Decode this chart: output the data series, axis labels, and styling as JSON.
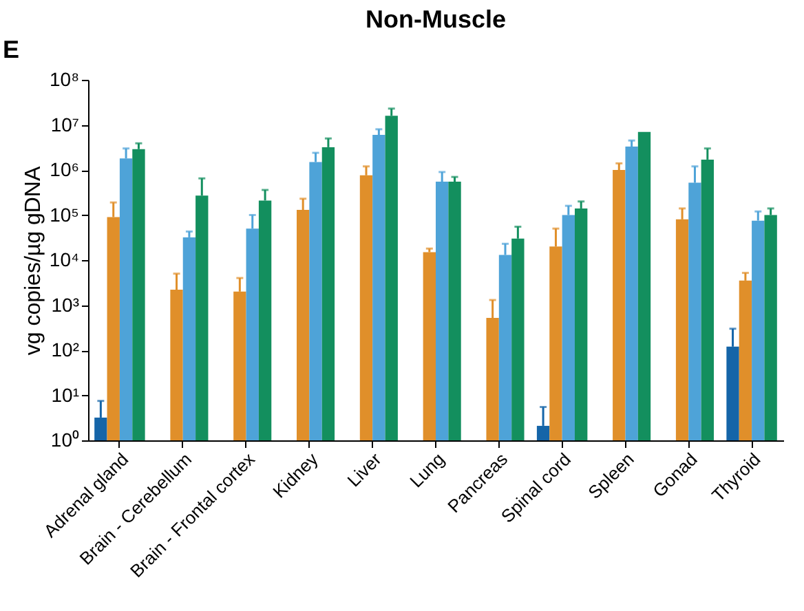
{
  "chart_data": {
    "type": "bar",
    "title": "Non-Muscle",
    "ylabel": "vg copies/µg gDNA",
    "annotations": [
      "E"
    ],
    "categories": [
      "Adrenal gland",
      "Brain - Cerebellum",
      "Brain - Frontal cortex",
      "Kidney",
      "Liver",
      "Lung",
      "Pancreas",
      "Spinal cord",
      "Spleen",
      "Gonad",
      "Thyroid"
    ],
    "log": true,
    "ylim": [
      1,
      100000000
    ],
    "yticks": [
      {
        "value": 1,
        "label": "10⁰"
      },
      {
        "value": 10,
        "label": "10¹"
      },
      {
        "value": 100,
        "label": "10²"
      },
      {
        "value": 1000,
        "label": "10³"
      },
      {
        "value": 10000,
        "label": "10⁴"
      },
      {
        "value": 100000,
        "label": "10⁵"
      },
      {
        "value": 1000000,
        "label": "10⁶"
      },
      {
        "value": 10000000,
        "label": "10⁷"
      },
      {
        "value": 100000000,
        "label": "10⁸"
      }
    ],
    "grid": false,
    "legend": false,
    "series": [
      {
        "color": "#1565a8",
        "values": [
          3.2,
          null,
          null,
          null,
          null,
          null,
          null,
          2.1,
          null,
          null,
          120
        ],
        "errors": [
          [
            3.2,
            7.5
          ],
          null,
          null,
          null,
          null,
          null,
          null,
          [
            2.1,
            5.5
          ],
          null,
          null,
          [
            120,
            300
          ]
        ]
      },
      {
        "color": "#e08f2a",
        "values": [
          90000,
          2200,
          2000,
          130000,
          760000,
          15000,
          520,
          20000,
          1000000,
          80000,
          3500
        ],
        "errors": [
          [
            90000,
            190000
          ],
          [
            2200,
            5000
          ],
          [
            2000,
            4000
          ],
          [
            130000,
            230000
          ],
          [
            760000,
            1200000
          ],
          [
            15000,
            18000
          ],
          [
            520,
            1300
          ],
          [
            20000,
            50000
          ],
          [
            1000000,
            1400000
          ],
          [
            80000,
            140000
          ],
          [
            3500,
            5200
          ]
        ]
      },
      {
        "color": "#4ea3d8",
        "values": [
          1800000,
          32000,
          50000,
          1500000,
          6000000,
          550000,
          13000,
          100000,
          3300000,
          520000,
          75000
        ],
        "errors": [
          [
            1800000,
            3000000
          ],
          [
            32000,
            43000
          ],
          [
            50000,
            100000
          ],
          [
            1500000,
            2400000
          ],
          [
            6000000,
            8000000
          ],
          [
            550000,
            900000
          ],
          [
            13000,
            23000
          ],
          [
            100000,
            160000
          ],
          [
            3300000,
            4500000
          ],
          [
            520000,
            1200000
          ],
          [
            75000,
            120000
          ]
        ]
      },
      {
        "color": "#138f5e",
        "values": [
          2900000,
          270000,
          210000,
          3200000,
          16000000,
          550000,
          30000,
          140000,
          7000000,
          1700000,
          100000
        ],
        "errors": [
          [
            2900000,
            3900000
          ],
          [
            270000,
            650000
          ],
          [
            210000,
            360000
          ],
          [
            3200000,
            5000000
          ],
          [
            16000000,
            23000000
          ],
          [
            550000,
            700000
          ],
          [
            30000,
            55000
          ],
          [
            140000,
            200000
          ],
          [
            null,
            null
          ],
          [
            1700000,
            3000000
          ],
          [
            100000,
            140000
          ]
        ]
      }
    ]
  }
}
